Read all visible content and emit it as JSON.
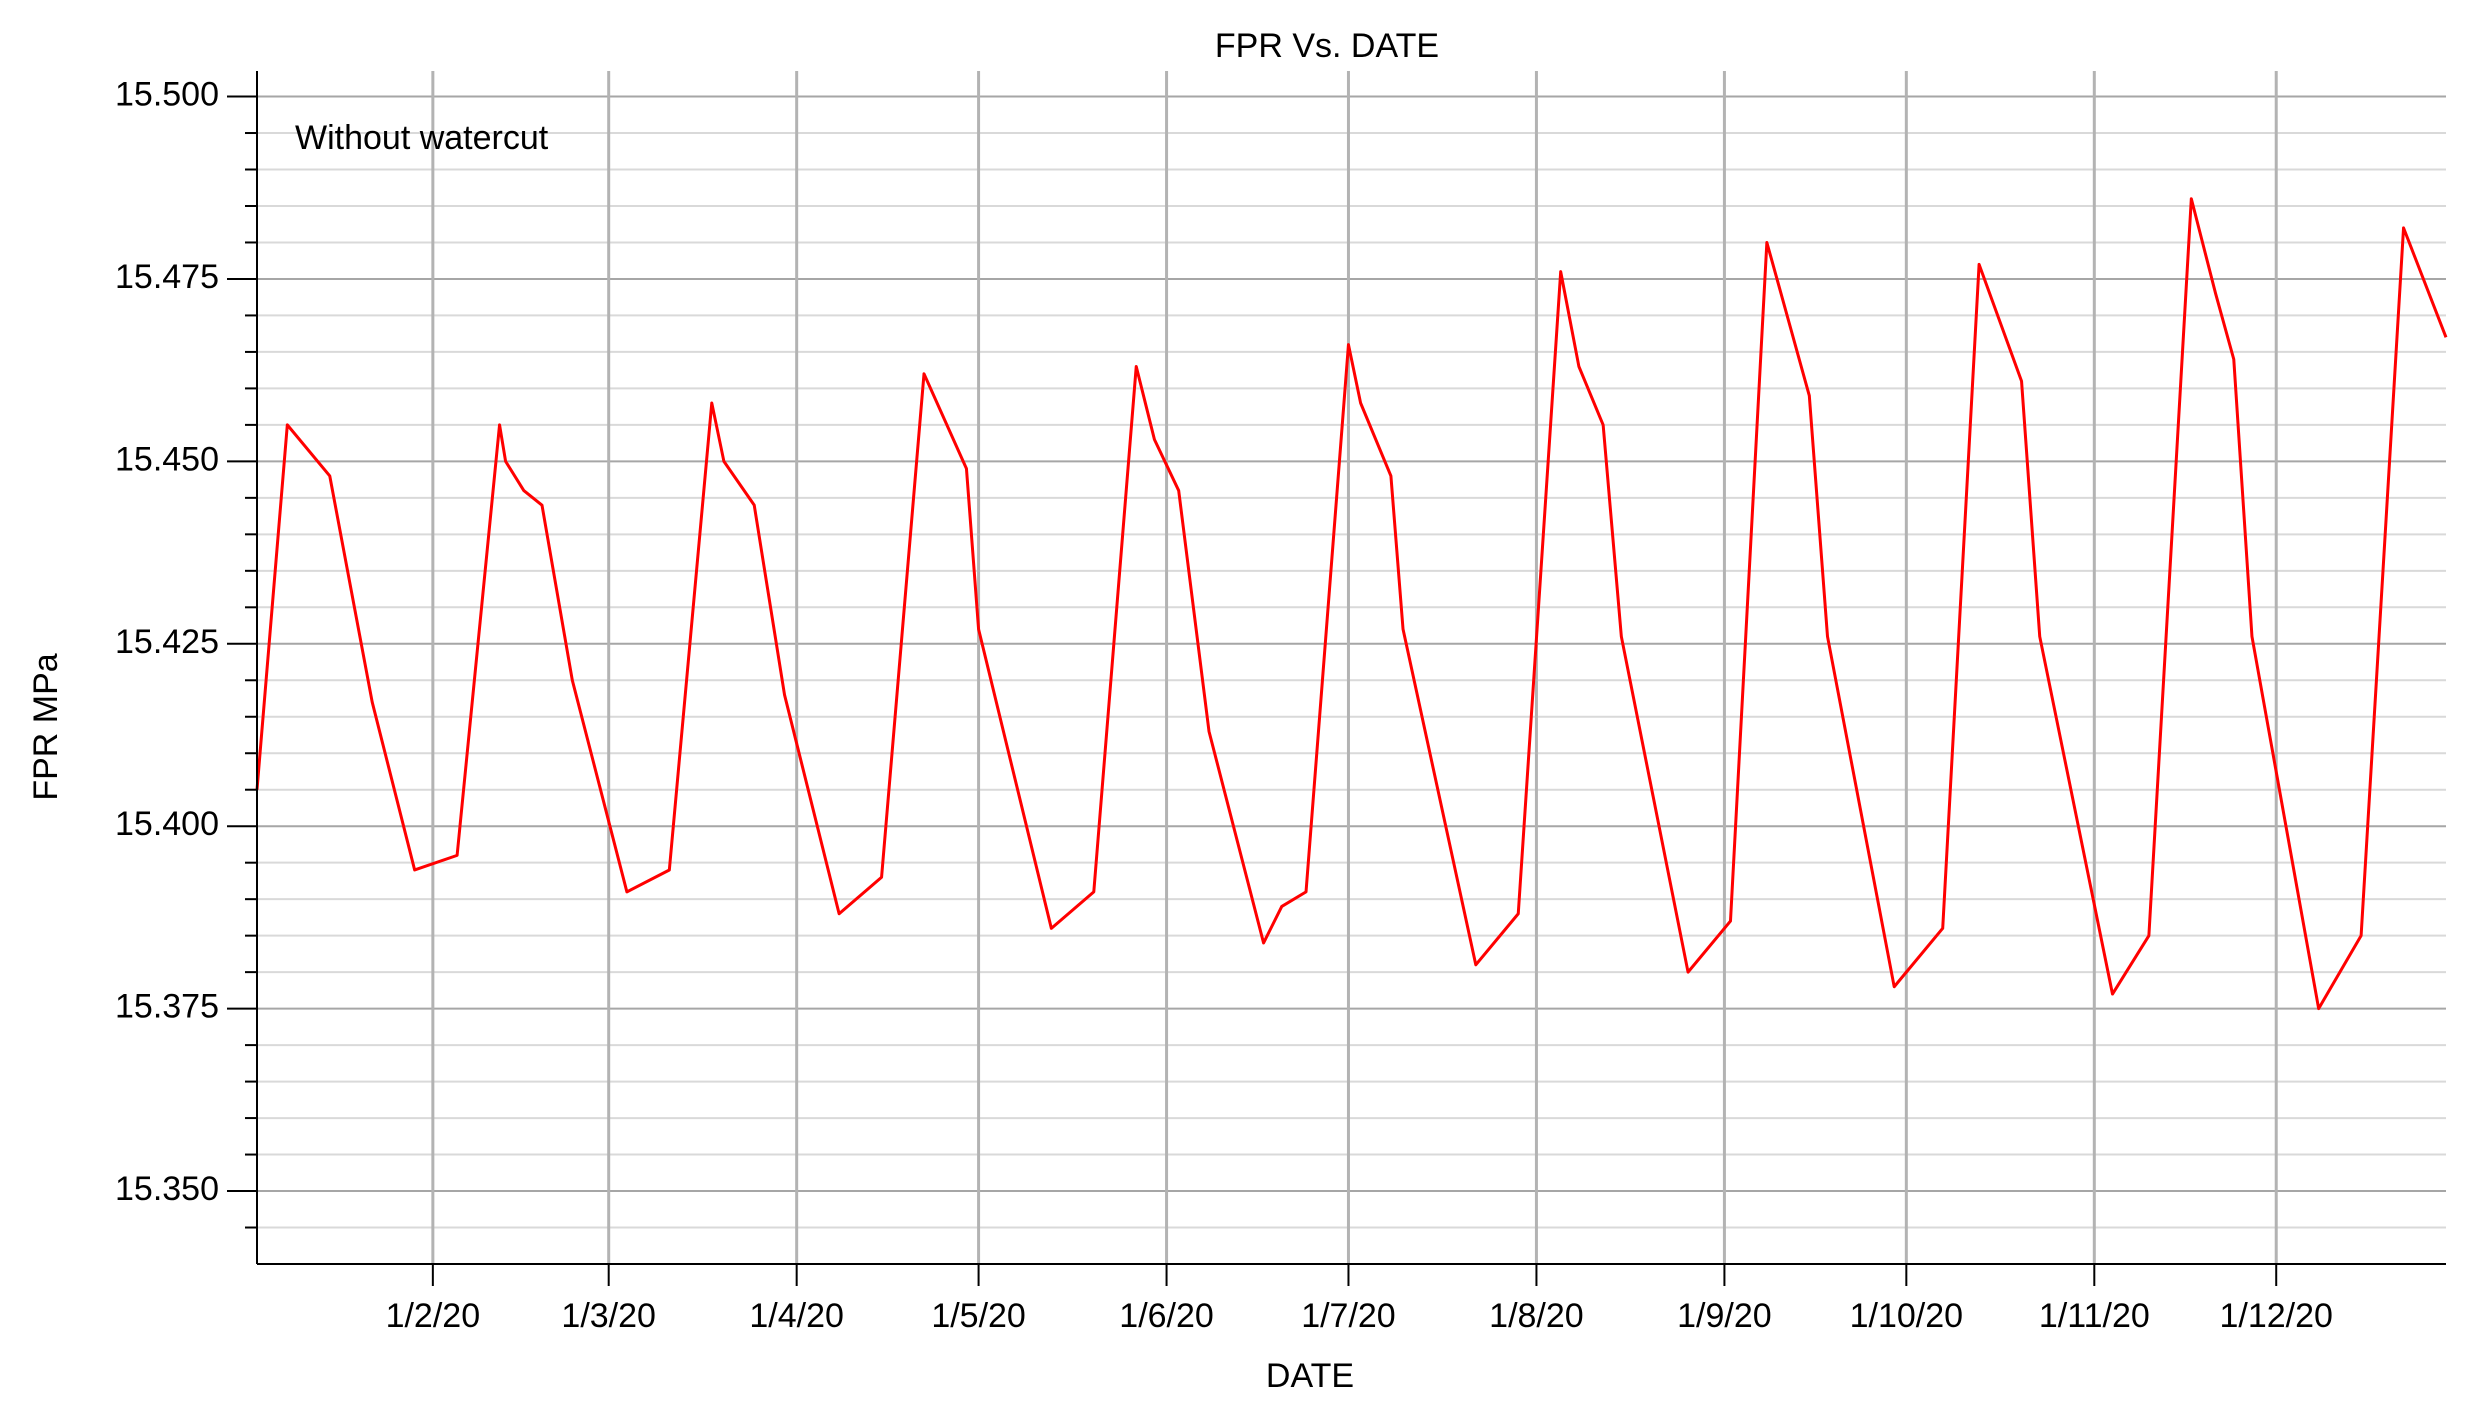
{
  "chart_data": {
    "type": "line",
    "title": "FPR Vs. DATE",
    "annotation": "Without watercut",
    "x_label": "DATE",
    "y_label": "FPR MPa",
    "color": "#ff0000",
    "grid": true,
    "x": [
      "2020-01-03",
      "2020-01-08",
      "2020-01-15",
      "2020-01-22",
      "2020-01-29",
      "2020-02-05",
      "2020-02-12",
      "2020-02-13",
      "2020-02-16",
      "2020-02-19",
      "2020-02-24",
      "2020-03-04",
      "2020-03-11",
      "2020-03-18",
      "2020-03-20",
      "2020-03-25",
      "2020-03-30",
      "2020-04-08",
      "2020-04-15",
      "2020-04-22",
      "2020-04-29",
      "2020-05-01",
      "2020-05-13",
      "2020-05-20",
      "2020-05-27",
      "2020-05-30",
      "2020-06-03",
      "2020-06-08",
      "2020-06-17",
      "2020-06-20",
      "2020-06-24",
      "2020-07-01",
      "2020-07-03",
      "2020-07-08",
      "2020-07-10",
      "2020-07-22",
      "2020-07-29",
      "2020-08-05",
      "2020-08-08",
      "2020-08-12",
      "2020-08-15",
      "2020-08-26",
      "2020-09-02",
      "2020-09-08",
      "2020-09-12",
      "2020-09-15",
      "2020-09-18",
      "2020-09-29",
      "2020-10-07",
      "2020-10-13",
      "2020-10-20",
      "2020-10-23",
      "2020-11-04",
      "2020-11-10",
      "2020-11-17",
      "2020-11-21",
      "2020-11-24",
      "2020-11-27",
      "2020-12-08",
      "2020-12-15",
      "2020-12-22",
      "2020-12-29"
    ],
    "values": [
      15.405,
      15.455,
      15.448,
      15.417,
      15.394,
      15.396,
      15.455,
      15.45,
      15.446,
      15.444,
      15.42,
      15.391,
      15.394,
      15.458,
      15.45,
      15.444,
      15.418,
      15.388,
      15.393,
      15.462,
      15.449,
      15.427,
      15.386,
      15.391,
      15.463,
      15.453,
      15.446,
      15.413,
      15.384,
      15.389,
      15.391,
      15.466,
      15.458,
      15.448,
      15.427,
      15.381,
      15.388,
      15.476,
      15.463,
      15.455,
      15.426,
      15.38,
      15.387,
      15.48,
      15.468,
      15.459,
      15.426,
      15.378,
      15.386,
      15.477,
      15.461,
      15.426,
      15.377,
      15.385,
      15.486,
      15.473,
      15.464,
      15.426,
      15.375,
      15.385,
      15.482,
      15.467
    ],
    "xlim": [
      "2020-01-03",
      "2020-12-29"
    ],
    "xticks": [
      {
        "value": "2020-02-01",
        "label": "1/2/20"
      },
      {
        "value": "2020-03-01",
        "label": "1/3/20"
      },
      {
        "value": "2020-04-01",
        "label": "1/4/20"
      },
      {
        "value": "2020-05-01",
        "label": "1/5/20"
      },
      {
        "value": "2020-06-01",
        "label": "1/6/20"
      },
      {
        "value": "2020-07-01",
        "label": "1/7/20"
      },
      {
        "value": "2020-08-01",
        "label": "1/8/20"
      },
      {
        "value": "2020-09-01",
        "label": "1/9/20"
      },
      {
        "value": "2020-10-01",
        "label": "1/10/20"
      },
      {
        "value": "2020-11-01",
        "label": "1/11/20"
      },
      {
        "value": "2020-12-01",
        "label": "1/12/20"
      }
    ],
    "ylim": [
      15.34,
      15.5035
    ],
    "yticks": [
      {
        "value": 15.35,
        "label": "15.350"
      },
      {
        "value": 15.375,
        "label": "15.375"
      },
      {
        "value": 15.4,
        "label": "15.400"
      },
      {
        "value": 15.425,
        "label": "15.425"
      },
      {
        "value": 15.45,
        "label": "15.450"
      },
      {
        "value": 15.475,
        "label": "15.475"
      },
      {
        "value": 15.5,
        "label": "15.500"
      }
    ],
    "yminorticks": [
      15.345,
      15.355,
      15.36,
      15.365,
      15.37,
      15.38,
      15.385,
      15.39,
      15.395,
      15.405,
      15.41,
      15.415,
      15.42,
      15.43,
      15.435,
      15.44,
      15.445,
      15.455,
      15.46,
      15.465,
      15.47,
      15.48,
      15.485,
      15.49,
      15.495
    ]
  }
}
